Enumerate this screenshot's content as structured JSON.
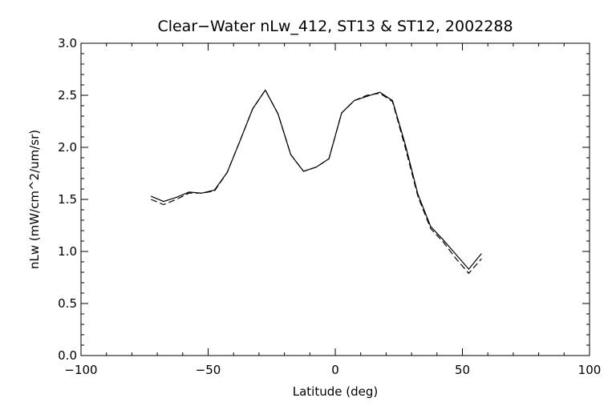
{
  "chart_data": {
    "type": "line",
    "title": "Clear−Water nLw_412, ST13 & ST12, 2002288",
    "xlabel": "Latitude (deg)",
    "ylabel": "nLw (mW/cm^2/um/sr)",
    "xlim": [
      -100,
      100
    ],
    "ylim": [
      0,
      3
    ],
    "x_ticks": [
      -100,
      -50,
      0,
      50,
      100
    ],
    "x_tick_labels": [
      "−100",
      "−50",
      "0",
      "50",
      "100"
    ],
    "y_ticks": [
      0,
      0.5,
      1,
      1.5,
      2,
      2.5,
      3
    ],
    "y_tick_labels": [
      "0.0",
      "0.5",
      "1.0",
      "1.5",
      "2.0",
      "2.5",
      "3.0"
    ],
    "grid": false,
    "series": [
      {
        "style": "solid",
        "x": [
          -72.5,
          -67.5,
          -62.5,
          -57.5,
          -52.5,
          -47.5,
          -42.5,
          -37.5,
          -32.5,
          -27.5,
          -22.5,
          -17.5,
          -12.5,
          -7.5,
          -2.5,
          2.5,
          7.5,
          12.5,
          17.5,
          22.5,
          27.5,
          32.5,
          37.5,
          42.5,
          47.5,
          52.5,
          57.5
        ],
        "y": [
          1.53,
          1.48,
          1.52,
          1.57,
          1.56,
          1.59,
          1.76,
          2.06,
          2.37,
          2.55,
          2.32,
          1.93,
          1.77,
          1.81,
          1.89,
          2.33,
          2.45,
          2.49,
          2.53,
          2.45,
          2.03,
          1.55,
          1.24,
          1.11,
          0.97,
          0.83,
          0.98
        ]
      },
      {
        "style": "dashed",
        "x": [
          -72.5,
          -67.5,
          -62.5,
          -57.5,
          -52.5,
          -47.5,
          -42.5,
          -37.5,
          -32.5,
          -27.5,
          -22.5,
          -17.5,
          -12.5,
          -7.5,
          -2.5,
          2.5,
          7.5,
          12.5,
          17.5,
          22.5,
          27.5,
          32.5,
          37.5,
          42.5,
          47.5,
          52.5,
          57.5
        ],
        "y": [
          1.5,
          1.45,
          1.5,
          1.56,
          1.56,
          1.58,
          1.76,
          2.06,
          2.37,
          2.55,
          2.32,
          1.93,
          1.77,
          1.81,
          1.89,
          2.33,
          2.45,
          2.5,
          2.52,
          2.44,
          2.0,
          1.53,
          1.22,
          1.09,
          0.93,
          0.79,
          0.93
        ]
      }
    ]
  }
}
